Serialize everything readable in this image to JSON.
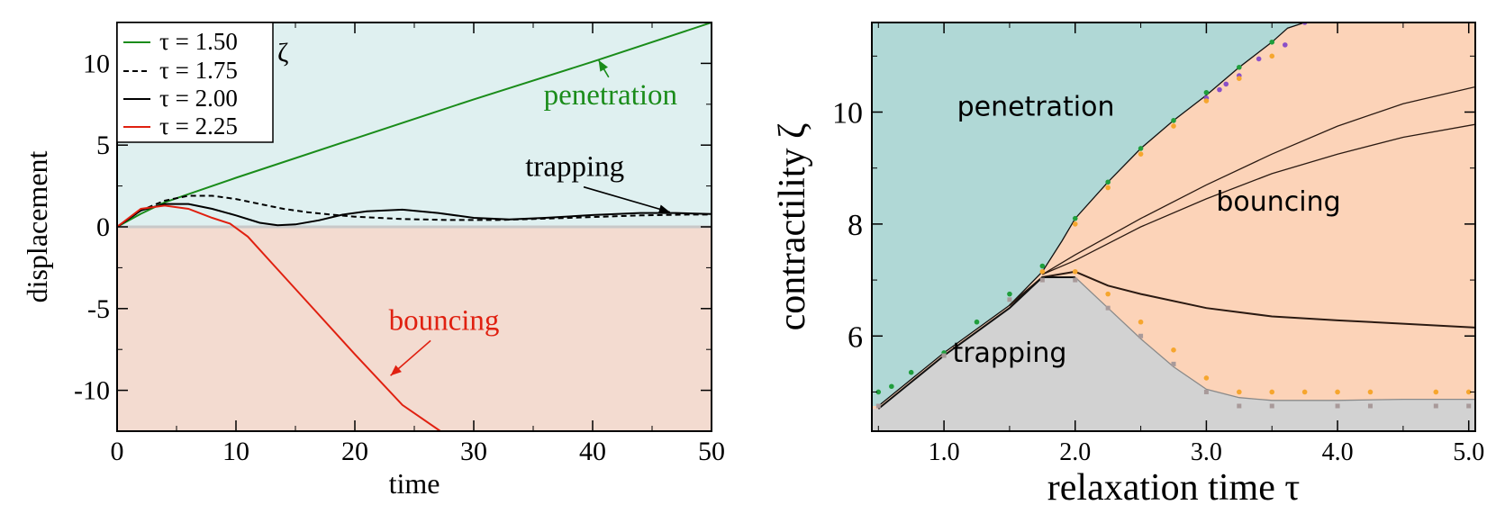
{
  "chart_data": [
    {
      "type": "line",
      "xlabel": "time",
      "ylabel": "displacement",
      "xlim": [
        0,
        50
      ],
      "ylim": [
        -12.5,
        12.5
      ],
      "xticks": [
        "0",
        "10",
        "20",
        "30",
        "40",
        "50"
      ],
      "yticks": [
        "-10",
        "-5",
        "0",
        "5",
        "10"
      ],
      "xtick_values": [
        0,
        10,
        20,
        30,
        40,
        50
      ],
      "ytick_values": [
        -10,
        -5,
        0,
        5,
        10
      ],
      "legend_title": "ζ",
      "legend_position": "top-left",
      "region_colors": {
        "upper": "#dff0f0",
        "lower": "#f3dbd0"
      },
      "series": [
        {
          "name": "τ = 1.50",
          "color": "#1a8c1a",
          "dash": "solid",
          "x": [
            0,
            2,
            4,
            6,
            10,
            20,
            30,
            40,
            50
          ],
          "y": [
            0,
            0.8,
            1.5,
            2.0,
            3.0,
            5.4,
            7.8,
            10.1,
            12.5
          ]
        },
        {
          "name": "τ = 1.75",
          "color": "#000000",
          "dash": "dashed",
          "x": [
            0,
            2,
            4,
            6,
            8,
            10,
            12,
            14,
            16,
            18,
            20,
            24,
            28,
            32,
            36,
            40,
            44,
            48,
            50
          ],
          "y": [
            0,
            1.0,
            1.6,
            1.9,
            1.9,
            1.7,
            1.4,
            1.1,
            0.9,
            0.75,
            0.62,
            0.48,
            0.42,
            0.42,
            0.5,
            0.6,
            0.7,
            0.75,
            0.75
          ]
        },
        {
          "name": "τ = 2.00",
          "color": "#000000",
          "dash": "solid",
          "x": [
            0,
            2,
            4,
            6,
            8,
            10,
            12,
            13.5,
            15,
            17,
            19,
            21,
            24,
            27,
            30,
            33,
            36,
            40,
            44,
            47,
            50
          ],
          "y": [
            0,
            1.0,
            1.4,
            1.4,
            1.1,
            0.7,
            0.25,
            0.1,
            0.15,
            0.4,
            0.75,
            0.95,
            1.05,
            0.85,
            0.55,
            0.45,
            0.55,
            0.72,
            0.85,
            0.85,
            0.78
          ]
        },
        {
          "name": "τ = 2.25",
          "color": "#e02010",
          "dash": "solid",
          "x": [
            0,
            2,
            4,
            6,
            8,
            9.5,
            11,
            13,
            16,
            20,
            24,
            27.2
          ],
          "y": [
            0,
            1.1,
            1.3,
            1.1,
            0.55,
            0.2,
            -0.6,
            -2.2,
            -4.6,
            -7.8,
            -10.9,
            -12.5
          ]
        }
      ],
      "annotations": [
        {
          "text": "penetration",
          "color": "#1a8c1a",
          "x": 41.5,
          "y": 7.5,
          "arrow_to": [
            40.5,
            10.2
          ]
        },
        {
          "text": "trapping",
          "color": "#000000",
          "x": 38.5,
          "y": 3.1,
          "arrow_to": [
            46.5,
            0.9
          ]
        },
        {
          "text": "bouncing",
          "color": "#e02010",
          "x": 27.5,
          "y": -6.3,
          "arrow_to": [
            23.0,
            -9.1
          ]
        }
      ]
    },
    {
      "type": "scatter",
      "xlabel": "relaxation time τ",
      "ylabel": "contractility ζ",
      "xlim": [
        0.45,
        5.05
      ],
      "ylim": [
        4.3,
        11.6
      ],
      "xticks": [
        "1.0",
        "2.0",
        "3.0",
        "4.0",
        "5.0"
      ],
      "yticks": [
        "6",
        "8",
        "10"
      ],
      "xtick_values": [
        1.0,
        2.0,
        3.0,
        4.0,
        5.0
      ],
      "ytick_values": [
        6,
        8,
        10
      ],
      "region_colors": {
        "penetration": "#b0d8d6",
        "bouncing": "#fcd3b8",
        "trapping": "#d2d2d2"
      },
      "region_labels": [
        {
          "text": "penetration",
          "x": 1.7,
          "y": 10.1
        },
        {
          "text": "bouncing",
          "x": 3.55,
          "y": 8.4
        },
        {
          "text": "trapping",
          "x": 1.5,
          "y": 5.7
        }
      ],
      "boundaries": {
        "penetration_upper": {
          "x": [
            0.5,
            1.0,
            1.5,
            1.75,
            1.9,
            2.0,
            2.25,
            2.5,
            2.75,
            3.0,
            3.25,
            3.5,
            3.62,
            3.75,
            5.05
          ],
          "y": [
            4.75,
            5.7,
            6.55,
            7.15,
            7.7,
            8.1,
            8.75,
            9.35,
            9.85,
            10.3,
            10.8,
            11.25,
            11.5,
            11.6,
            11.6
          ]
        },
        "upper_branch": {
          "x": [
            1.75,
            2.0,
            2.5,
            3.0,
            3.5,
            4.0,
            4.5,
            5.05
          ],
          "y": [
            7.1,
            7.45,
            8.1,
            8.7,
            9.25,
            9.75,
            10.15,
            10.45
          ]
        },
        "middle_branch": {
          "x": [
            1.75,
            2.0,
            2.5,
            3.0,
            3.5,
            4.0,
            4.5,
            5.05
          ],
          "y": [
            7.1,
            7.35,
            7.95,
            8.45,
            8.9,
            9.25,
            9.55,
            9.78
          ]
        },
        "lower_branch": {
          "x": [
            1.5,
            1.75,
            2.0,
            2.25,
            2.5,
            3.0,
            3.5,
            4.0,
            4.5,
            5.05
          ],
          "y": [
            6.55,
            7.05,
            7.15,
            6.9,
            6.75,
            6.5,
            6.35,
            6.28,
            6.22,
            6.15
          ]
        },
        "trap_left": {
          "x": [
            0.5,
            1.0,
            1.5,
            1.75,
            2.0
          ],
          "y": [
            4.7,
            5.65,
            6.5,
            7.05,
            7.05
          ]
        },
        "trap_right": {
          "x": [
            2.0,
            2.25,
            2.5,
            2.75,
            3.0,
            3.25,
            3.5,
            4.0,
            4.5,
            5.05
          ],
          "y": [
            7.05,
            6.5,
            5.95,
            5.45,
            5.05,
            4.9,
            4.85,
            4.85,
            4.87,
            4.87
          ]
        }
      },
      "series": [
        {
          "name": "",
          "color": "#1f9e3c",
          "x": [
            0.5,
            0.6,
            0.75,
            1.0,
            1.25,
            1.5,
            1.75,
            2.0,
            2.25,
            2.5,
            2.75,
            3.0,
            3.25,
            3.5
          ],
          "y": [
            5.0,
            5.1,
            5.35,
            5.7,
            6.25,
            6.75,
            7.25,
            8.1,
            8.75,
            9.35,
            9.85,
            10.35,
            10.8,
            11.25
          ]
        },
        {
          "name": "",
          "color": "#8a4fc8",
          "x": [
            3.0,
            3.1,
            3.15,
            3.25,
            3.4,
            3.6,
            3.75
          ],
          "y": [
            10.25,
            10.4,
            10.5,
            10.65,
            10.95,
            11.2,
            11.6
          ]
        },
        {
          "name": "",
          "color": "#f6a62e",
          "x": [
            1.75,
            2.0,
            2.25,
            2.5,
            2.75,
            3.0,
            3.25,
            3.5,
            3.75,
            4.0,
            4.25,
            4.75,
            5.0,
            2.0,
            2.25,
            2.5,
            2.75,
            3.0,
            3.25,
            3.5
          ],
          "y": [
            7.15,
            8.0,
            8.65,
            9.25,
            9.75,
            10.2,
            10.6,
            11.0,
            5.0,
            5.0,
            5.0,
            5.0,
            5.0,
            7.15,
            6.75,
            6.25,
            5.75,
            5.25,
            5.0,
            5.0
          ]
        },
        {
          "name": "",
          "color": "#a89a9a",
          "x": [
            0.5,
            1.0,
            1.5,
            1.75,
            2.0,
            2.25,
            2.5,
            2.75,
            3.0,
            3.25,
            3.5,
            4.0,
            4.25,
            4.75,
            5.0
          ],
          "y": [
            4.75,
            5.65,
            6.65,
            7.0,
            7.0,
            6.5,
            6.0,
            5.5,
            5.0,
            4.75,
            4.75,
            4.75,
            4.75,
            4.75,
            4.75
          ]
        }
      ]
    }
  ]
}
